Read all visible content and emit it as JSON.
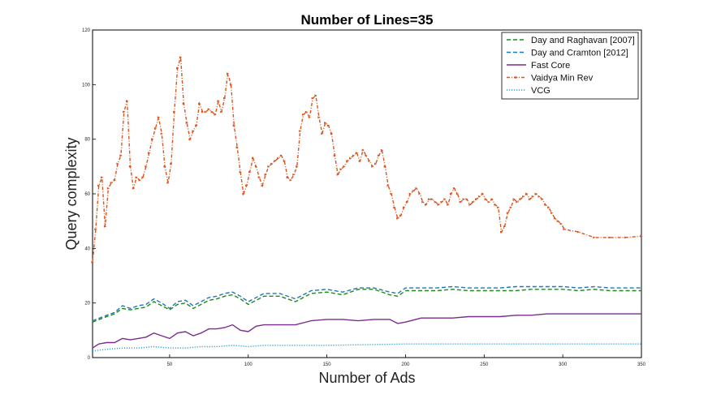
{
  "chart_data": {
    "type": "line",
    "title": "Number of Lines=35",
    "xlabel": "Number of Ads",
    "ylabel": "Query complexity",
    "xlim": [
      1,
      350
    ],
    "ylim": [
      0,
      120
    ],
    "xticks": [
      50,
      100,
      150,
      200,
      250,
      300,
      350
    ],
    "yticks": [
      0,
      20,
      40,
      60,
      80,
      100,
      120
    ],
    "grid": false,
    "legend_position": "top-right",
    "series": [
      {
        "name": "Day and Raghavan [2007]",
        "color": "#1a8a1a",
        "style": "dashed",
        "x": [
          1,
          10,
          15,
          20,
          25,
          30,
          35,
          40,
          45,
          50,
          55,
          60,
          65,
          70,
          75,
          80,
          85,
          90,
          95,
          100,
          110,
          120,
          130,
          140,
          150,
          160,
          170,
          180,
          190,
          195,
          200,
          210,
          220,
          230,
          240,
          250,
          260,
          270,
          280,
          290,
          300,
          310,
          320,
          330,
          340,
          350
        ],
        "y": [
          13,
          15,
          16,
          18,
          17.5,
          18,
          18.5,
          20.5,
          19,
          17.5,
          19.5,
          20,
          18,
          19.5,
          21,
          21.5,
          22.5,
          23,
          21.5,
          19.5,
          22.5,
          22.5,
          20.5,
          23.5,
          24,
          23,
          25,
          25,
          23,
          22.5,
          24.5,
          24.5,
          24.5,
          25,
          24.5,
          24.5,
          24.5,
          24.5,
          25,
          25,
          25,
          24.5,
          25,
          24.5,
          24.5,
          24.5
        ]
      },
      {
        "name": "Day and Cramton [2012]",
        "color": "#1f77b4",
        "style": "dashed",
        "x": [
          1,
          10,
          15,
          20,
          25,
          30,
          35,
          40,
          45,
          50,
          55,
          60,
          65,
          70,
          75,
          80,
          85,
          90,
          95,
          100,
          110,
          120,
          130,
          140,
          150,
          160,
          170,
          180,
          190,
          195,
          200,
          210,
          220,
          230,
          240,
          250,
          260,
          270,
          280,
          290,
          300,
          310,
          320,
          330,
          340,
          350
        ],
        "y": [
          13.5,
          15.5,
          16.5,
          19,
          18,
          19,
          19.5,
          21.5,
          20,
          18,
          20.5,
          21,
          19,
          20.5,
          22,
          22.5,
          23.5,
          24,
          22.5,
          20.5,
          23.5,
          23.5,
          21.5,
          24.5,
          25,
          24,
          25.5,
          25.5,
          24,
          23.5,
          25.5,
          25.5,
          25.5,
          26,
          25.5,
          25.5,
          25.5,
          26,
          26,
          26,
          26,
          25.5,
          26,
          25.5,
          25.5,
          25.5
        ]
      },
      {
        "name": "Fast Core",
        "color": "#7b2d8e",
        "style": "solid",
        "x": [
          1,
          5,
          10,
          15,
          20,
          25,
          30,
          35,
          40,
          45,
          50,
          55,
          60,
          65,
          70,
          75,
          80,
          85,
          90,
          95,
          100,
          105,
          110,
          120,
          130,
          140,
          150,
          160,
          170,
          180,
          190,
          195,
          200,
          210,
          220,
          230,
          240,
          250,
          260,
          270,
          280,
          290,
          300,
          310,
          320,
          330,
          340,
          350
        ],
        "y": [
          3.5,
          5,
          5.5,
          5.5,
          7,
          6.5,
          7,
          7.5,
          9,
          8,
          7,
          9,
          9.5,
          8,
          9,
          10.5,
          10.5,
          11,
          12,
          10,
          9.5,
          11.5,
          12,
          12,
          12,
          13.5,
          14,
          14,
          13.5,
          14,
          14,
          12.5,
          13,
          14.5,
          14.5,
          14.5,
          15,
          15,
          15,
          15.5,
          15.5,
          16,
          16,
          16,
          16,
          16,
          16,
          16
        ]
      },
      {
        "name": "Vaidya Min Rev",
        "color": "#d9541e",
        "style": "dash-dot-markers",
        "x": [
          1,
          3,
          5,
          7,
          9,
          11,
          13,
          15,
          17,
          19,
          21,
          23,
          25,
          27,
          29,
          31,
          33,
          35,
          37,
          39,
          41,
          43,
          45,
          47,
          49,
          51,
          53,
          55,
          57,
          59,
          61,
          63,
          65,
          67,
          69,
          71,
          73,
          75,
          77,
          79,
          81,
          83,
          85,
          87,
          89,
          91,
          93,
          95,
          97,
          99,
          101,
          103,
          105,
          107,
          109,
          111,
          113,
          115,
          117,
          119,
          121,
          123,
          125,
          127,
          129,
          131,
          133,
          135,
          137,
          139,
          141,
          143,
          145,
          147,
          149,
          151,
          153,
          155,
          157,
          159,
          161,
          163,
          165,
          167,
          169,
          171,
          173,
          175,
          177,
          179,
          181,
          183,
          185,
          187,
          189,
          191,
          193,
          195,
          197,
          199,
          201,
          203,
          205,
          207,
          209,
          211,
          213,
          215,
          217,
          219,
          221,
          223,
          225,
          227,
          229,
          231,
          233,
          235,
          237,
          239,
          241,
          243,
          245,
          247,
          249,
          251,
          253,
          255,
          257,
          259,
          261,
          263,
          265,
          267,
          269,
          271,
          273,
          275,
          277,
          279,
          281,
          283,
          285,
          287,
          289,
          291,
          293,
          295,
          297,
          299,
          301,
          310,
          320,
          330,
          340,
          350
        ],
        "y": [
          35,
          47,
          63,
          66,
          48,
          62,
          64,
          65,
          71,
          74,
          90,
          94,
          70,
          62,
          66,
          65,
          66,
          70,
          75,
          80,
          84,
          88,
          82,
          70,
          64,
          71,
          90,
          106,
          110,
          93,
          86,
          80,
          83,
          85,
          93,
          90,
          90,
          91,
          90,
          89,
          94,
          90,
          95,
          104,
          100,
          85,
          77,
          68,
          60,
          63,
          68,
          73,
          70,
          66,
          63,
          67,
          70,
          71,
          72,
          73,
          74,
          72,
          66,
          65,
          67,
          70,
          83,
          89,
          90,
          88,
          95,
          96,
          88,
          82,
          86,
          85,
          82,
          74,
          67,
          69,
          70,
          72,
          73,
          74,
          75,
          72,
          76,
          74,
          72,
          70,
          71,
          74,
          76,
          70,
          63,
          60,
          55,
          51,
          52,
          55,
          57,
          60,
          61,
          62,
          60,
          57,
          56,
          58,
          58,
          57,
          56,
          57,
          58,
          56,
          60,
          62,
          60,
          57,
          58,
          58,
          56,
          57,
          58,
          59,
          60,
          58,
          57,
          58,
          56,
          55,
          46,
          48,
          53,
          55,
          58,
          57,
          58,
          59,
          60,
          58,
          59,
          60,
          59,
          58,
          56,
          55,
          53,
          51,
          50,
          49,
          47,
          46,
          44,
          44,
          44,
          44.5
        ]
      },
      {
        "name": "VCG",
        "color": "#2a9fd6",
        "style": "dotted",
        "x": [
          1,
          10,
          20,
          30,
          40,
          50,
          60,
          70,
          80,
          90,
          100,
          110,
          120,
          130,
          140,
          150,
          200,
          250,
          300,
          350
        ],
        "y": [
          2.5,
          3,
          3.5,
          3.5,
          4,
          3.5,
          3.5,
          4,
          4,
          4.5,
          4,
          4.5,
          4.5,
          4.5,
          4.5,
          4.5,
          5,
          5,
          5,
          5
        ]
      }
    ]
  }
}
